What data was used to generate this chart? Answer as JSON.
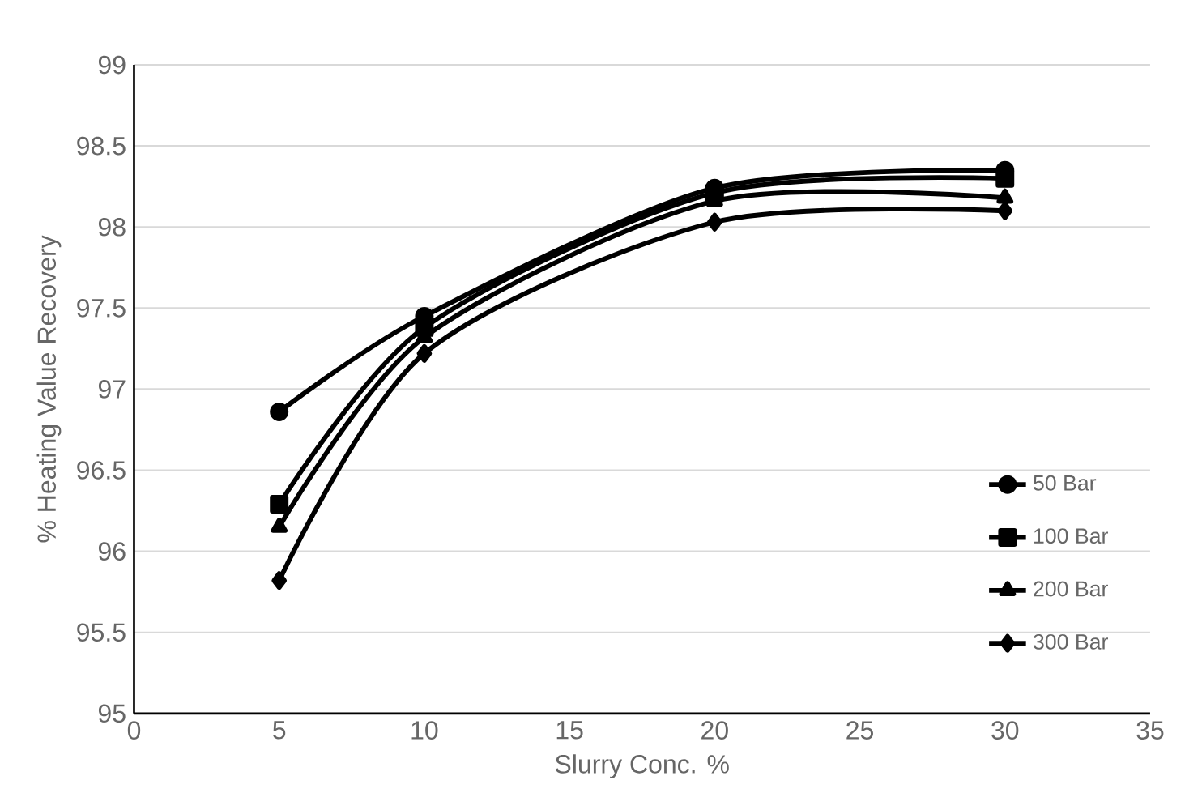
{
  "chart_data": {
    "type": "line",
    "xlabel": "Slurry Conc. %",
    "ylabel": "% Heating Value Recovery",
    "x": [
      5,
      10,
      20,
      30
    ],
    "series": [
      {
        "name": "50 Bar",
        "color": "#000000",
        "marker": "circle",
        "values": [
          96.86,
          97.45,
          98.24,
          98.35
        ]
      },
      {
        "name": "100 Bar",
        "color": "#000000",
        "marker": "square",
        "values": [
          96.29,
          97.38,
          98.21,
          98.3
        ]
      },
      {
        "name": "200 Bar",
        "color": "#000000",
        "marker": "triangle",
        "values": [
          96.15,
          97.32,
          98.16,
          98.18
        ]
      },
      {
        "name": "300 Bar",
        "color": "#000000",
        "marker": "diamond",
        "values": [
          95.82,
          97.22,
          98.03,
          98.1
        ]
      }
    ],
    "xlim": [
      0,
      35
    ],
    "xticks": [
      0,
      5,
      10,
      15,
      20,
      25,
      30,
      35
    ],
    "ylim": [
      95,
      99
    ],
    "yticks": [
      95,
      95.5,
      96,
      96.5,
      97,
      97.5,
      98,
      98.5,
      99
    ],
    "grid": "y",
    "legend": "bottom right",
    "line_style": "solid"
  }
}
